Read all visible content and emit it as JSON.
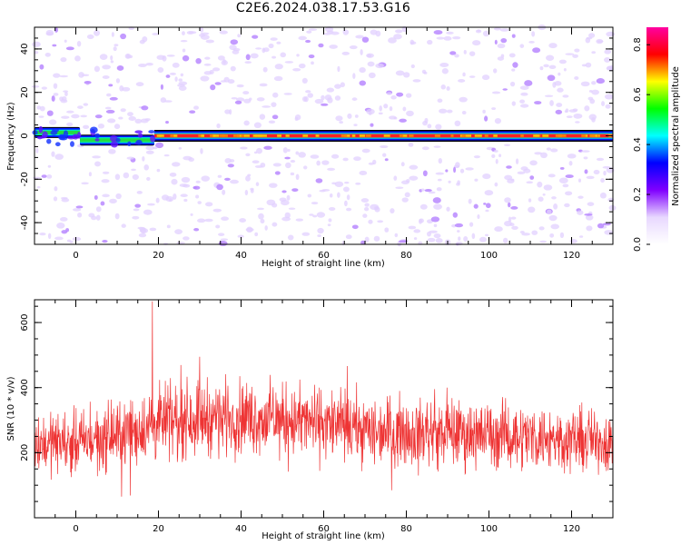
{
  "title": "C2E6.2024.038.17.53.G16",
  "chart_data": [
    {
      "type": "heatmap",
      "xlabel": "Height of straight line (km)",
      "ylabel": "Frequency (Hz)",
      "xlim": [
        -10,
        130
      ],
      "ylim": [
        -50,
        50
      ],
      "xticks": [
        0,
        20,
        40,
        60,
        80,
        100,
        120
      ],
      "yticks": [
        -40,
        -20,
        0,
        20,
        40
      ],
      "colorbar": {
        "label": "Normalized spectral amplitude",
        "range": [
          0.0,
          0.87
        ],
        "ticks": [
          "0.0",
          "0.2",
          "0.4",
          "0.6",
          "0.8"
        ],
        "colormap": [
          "#ffffff",
          "#e8d8ff",
          "#8000ff",
          "#0000ff",
          "#00ffff",
          "#00ff00",
          "#ffff00",
          "#ff0000",
          "#ff00a0"
        ]
      },
      "dominant_band": {
        "frequency_hz": 0,
        "start_km": -10,
        "end_km": 130,
        "note_segments": [
          {
            "x0": -10,
            "x1": 1,
            "f": 1.5
          },
          {
            "x0": 1,
            "x1": 19,
            "f": -2
          },
          {
            "x0": 19,
            "x1": 130,
            "f": 0
          }
        ],
        "amplitude_peak": 0.85
      }
    },
    {
      "type": "line",
      "xlabel": "Height of straight line (km)",
      "ylabel": "SNR (10 * v/v)",
      "xlim": [
        -10,
        130
      ],
      "ylim": [
        0,
        670
      ],
      "xticks": [
        0,
        20,
        40,
        60,
        80,
        100,
        120
      ],
      "yticks": [
        200,
        400,
        600
      ],
      "series": [
        {
          "color": "#ee3333",
          "envelope": [
            {
              "x": -10,
              "mean": 230,
              "spread": 130
            },
            {
              "x": 0,
              "mean": 230,
              "spread": 140
            },
            {
              "x": 10,
              "mean": 250,
              "spread": 150
            },
            {
              "x": 20,
              "mean": 290,
              "spread": 165
            },
            {
              "x": 30,
              "mean": 310,
              "spread": 170
            },
            {
              "x": 40,
              "mean": 310,
              "spread": 165
            },
            {
              "x": 50,
              "mean": 300,
              "spread": 160
            },
            {
              "x": 60,
              "mean": 290,
              "spread": 160
            },
            {
              "x": 70,
              "mean": 270,
              "spread": 155
            },
            {
              "x": 80,
              "mean": 265,
              "spread": 150
            },
            {
              "x": 90,
              "mean": 260,
              "spread": 150
            },
            {
              "x": 100,
              "mean": 255,
              "spread": 150
            },
            {
              "x": 110,
              "mean": 250,
              "spread": 145
            },
            {
              "x": 120,
              "mean": 240,
              "spread": 140
            },
            {
              "x": 130,
              "mean": 235,
              "spread": 140
            }
          ],
          "peak": {
            "x": 18.5,
            "y": 665
          }
        }
      ]
    }
  ]
}
